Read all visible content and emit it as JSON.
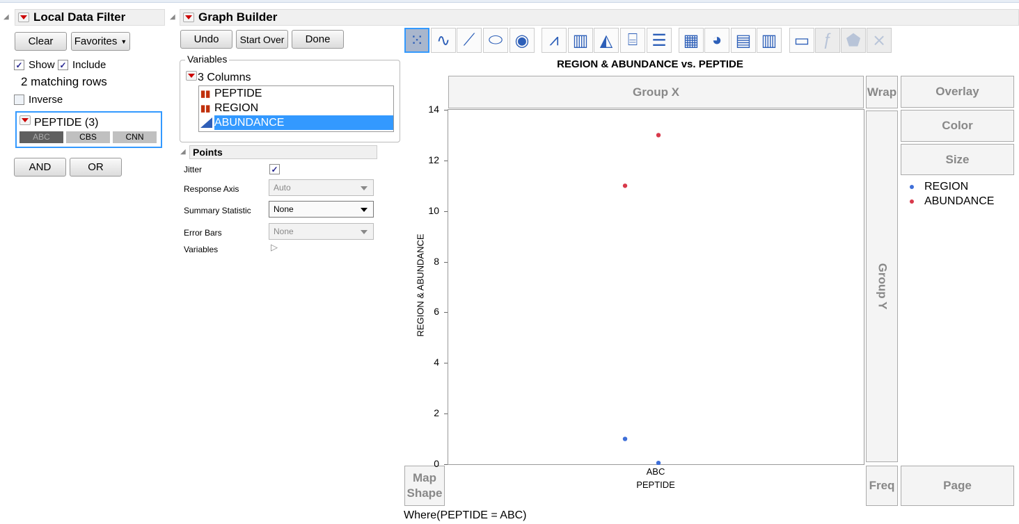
{
  "filter": {
    "title": "Local Data Filter",
    "clear": "Clear",
    "favorites": "Favorites",
    "show": "Show",
    "include": "Include",
    "matching": "2 matching rows",
    "inverse": "Inverse",
    "column": "PEPTIDE (3)",
    "levels": [
      "ABC",
      "CBS",
      "CNN"
    ],
    "selected_level": "ABC",
    "and": "AND",
    "or": "OR"
  },
  "builder": {
    "title": "Graph Builder",
    "undo": "Undo",
    "start_over": "Start Over",
    "done": "Done",
    "variables_label": "Variables",
    "columns_label": "3 Columns",
    "columns": [
      {
        "name": "PEPTIDE",
        "type": "nominal"
      },
      {
        "name": "REGION",
        "type": "nominal"
      },
      {
        "name": "ABUNDANCE",
        "type": "continuous",
        "selected": true
      }
    ],
    "points": {
      "title": "Points",
      "jitter_label": "Jitter",
      "jitter": true,
      "response_axis_label": "Response Axis",
      "response_axis": "Auto",
      "summary_label": "Summary Statistic",
      "summary": "None",
      "error_bars_label": "Error Bars",
      "error_bars": "None",
      "variables_label": "Variables"
    },
    "icons": [
      "points",
      "smoother",
      "line-of-fit",
      "ellipse",
      "contour",
      "line",
      "bar",
      "area",
      "box-plot",
      "histogram",
      "heatmap",
      "pie",
      "treemap",
      "mosaic",
      "caption-box",
      "formula",
      "map-shape",
      "parallel"
    ],
    "zones": {
      "group_x": "Group X",
      "group_y": "Group Y",
      "wrap": "Wrap",
      "overlay": "Overlay",
      "color": "Color",
      "size": "Size",
      "freq": "Freq",
      "page": "Page",
      "map_shape": "Map Shape"
    },
    "where": "Where(PEPTIDE = ABC)"
  },
  "chart_data": {
    "type": "scatter",
    "title": "REGION & ABUNDANCE vs. PEPTIDE",
    "xlabel": "PEPTIDE",
    "ylabel": "REGION & ABUNDANCE",
    "categories": [
      "ABC"
    ],
    "ylim": [
      0,
      14
    ],
    "yticks": [
      "0",
      "2",
      "4",
      "6",
      "8",
      "10",
      "12",
      "14"
    ],
    "legend": "right",
    "series": [
      {
        "name": "REGION",
        "color": "#3f6fd8",
        "values": [
          1,
          0.05
        ]
      },
      {
        "name": "ABUNDANCE",
        "color": "#d8394b",
        "values": [
          11,
          13
        ]
      }
    ]
  }
}
